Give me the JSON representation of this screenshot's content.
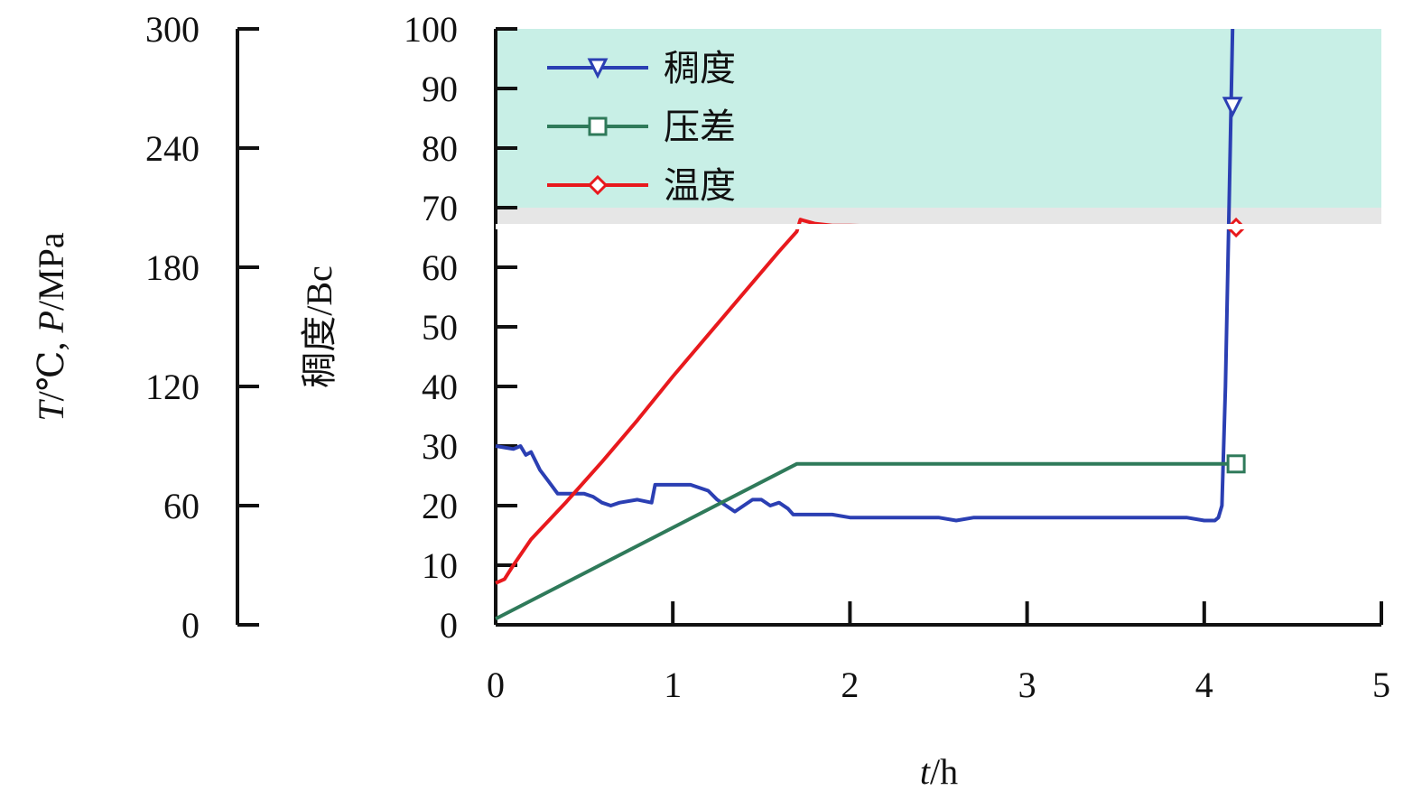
{
  "chart_data": {
    "type": "line",
    "x_axis": {
      "label_var": "t",
      "label_unit": "/h",
      "range": [
        0,
        5
      ],
      "ticks": [
        "0",
        "1",
        "2",
        "3",
        "4",
        "5"
      ]
    },
    "y_axis_left_outer": {
      "label_parts": [
        "T",
        "/℃, ",
        "P",
        "/MPa"
      ],
      "range": [
        0,
        300
      ],
      "ticks": [
        "0",
        "60",
        "120",
        "180",
        "240",
        "300"
      ]
    },
    "y_axis_left_inner": {
      "label": "稠度/Bc",
      "range": [
        0,
        100
      ],
      "ticks": [
        "0",
        "10",
        "20",
        "30",
        "40",
        "50",
        "60",
        "70",
        "80",
        "90",
        "100"
      ]
    },
    "shaded_region": {
      "axis": "consistency",
      "from": 70,
      "to": 100,
      "color": "#c8efe6"
    },
    "grid": false,
    "legend_position": "top-left",
    "series": [
      {
        "name": "稠度",
        "color": "#2b3fb3",
        "marker": "triangle-down",
        "axis": "consistency",
        "x": [
          0,
          0.1,
          0.14,
          0.17,
          0.2,
          0.25,
          0.3,
          0.35,
          0.4,
          0.5,
          0.55,
          0.6,
          0.65,
          0.7,
          0.8,
          0.88,
          0.9,
          1.0,
          1.1,
          1.2,
          1.25,
          1.3,
          1.35,
          1.4,
          1.45,
          1.5,
          1.55,
          1.6,
          1.65,
          1.68,
          1.7,
          1.9,
          2.0,
          2.2,
          2.5,
          2.6,
          2.7,
          3.0,
          3.5,
          3.9,
          4.0,
          4.06,
          4.08,
          4.1,
          4.12,
          4.14,
          4.16
        ],
        "y": [
          30,
          29.5,
          30,
          28.5,
          29,
          26,
          24,
          22,
          22,
          22,
          21.5,
          20.5,
          20,
          20.5,
          21,
          20.5,
          23.5,
          23.5,
          23.5,
          22.5,
          21,
          20,
          19,
          20,
          21,
          21,
          20,
          20.5,
          19.5,
          18.5,
          18.5,
          18.5,
          18,
          18,
          18,
          17.5,
          18,
          18,
          18,
          18,
          17.5,
          17.5,
          18,
          20,
          40,
          70,
          100
        ]
      },
      {
        "name": "压差",
        "color": "#2f7a5a",
        "marker": "square",
        "axis": "temp_pressure",
        "x": [
          0,
          1.7,
          2.0,
          2.5,
          3.0,
          3.5,
          4.0,
          4.18
        ],
        "y": [
          3,
          81,
          81,
          81,
          81,
          81,
          81,
          81
        ]
      },
      {
        "name": "温度",
        "color": "#e8191d",
        "marker": "diamond",
        "axis": "temp_pressure",
        "x": [
          0,
          0.05,
          0.1,
          0.2,
          0.4,
          0.6,
          0.8,
          1.0,
          1.2,
          1.4,
          1.6,
          1.7,
          1.72,
          1.8,
          1.9,
          2.0,
          2.5,
          3.0,
          3.5,
          4.0,
          4.18
        ],
        "y": [
          21,
          23,
          30,
          43,
          62,
          82,
          103,
          125,
          146,
          167,
          188,
          198,
          204,
          202,
          201,
          201,
          200,
          200,
          200,
          200,
          200
        ]
      }
    ]
  }
}
